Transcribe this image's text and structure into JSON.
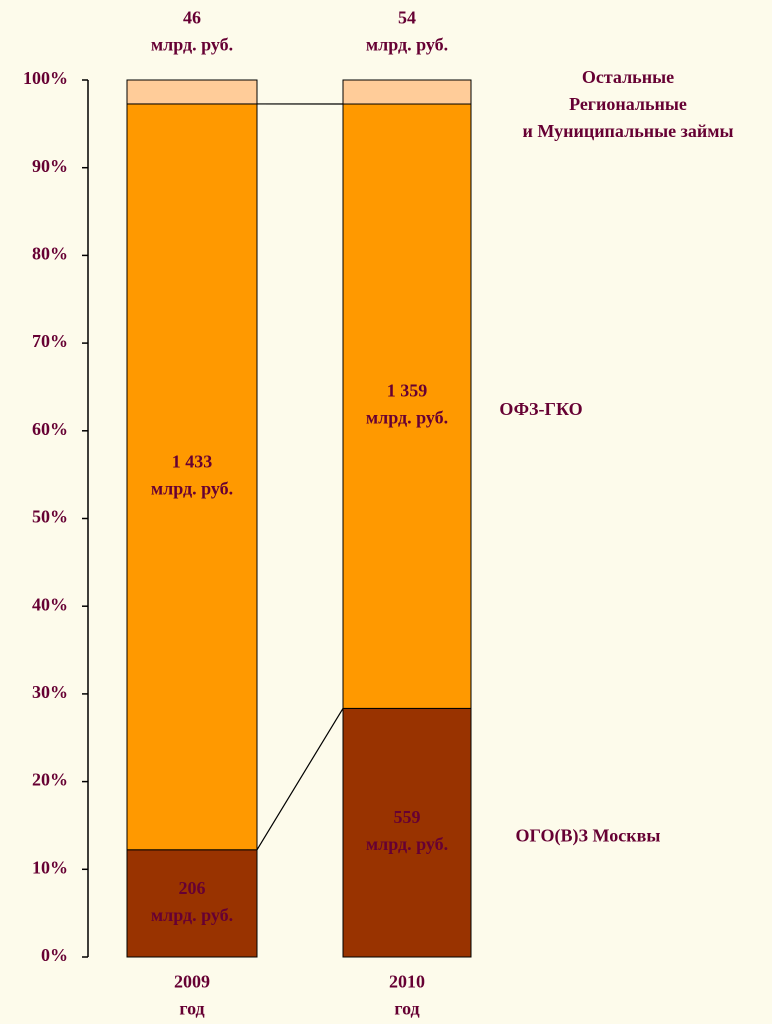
{
  "chart_data": {
    "type": "bar",
    "stacked": "percent",
    "categories": [
      [
        "2009",
        "год"
      ],
      [
        "2010",
        "год"
      ]
    ],
    "series": [
      {
        "name": [
          "ОГО(В)З Москвы"
        ],
        "color": "#993300",
        "label_color": "#ffffff",
        "values": [
          206,
          559
        ],
        "value_labels": [
          [
            "206",
            "млрд. руб."
          ],
          [
            "559",
            "млрд. руб."
          ]
        ]
      },
      {
        "name": [
          "ОФЗ-ГКО"
        ],
        "color": "#ff9900",
        "label_color": "#660033",
        "values": [
          1433,
          1359
        ],
        "value_labels": [
          [
            "1 433",
            "млрд. руб."
          ],
          [
            "1 359",
            "млрд. руб."
          ]
        ]
      },
      {
        "name": [
          "Остальные",
          "Региональные",
          "и Муниципальные займы"
        ],
        "color": "#ffcc99",
        "label_color": "#660033",
        "values": [
          46,
          54
        ],
        "value_labels": [
          [
            "46",
            "млрд. руб."
          ],
          [
            "54",
            "млрд. руб."
          ]
        ]
      }
    ],
    "ylim": [
      0,
      100
    ],
    "yticks": [
      {
        "value": 0,
        "label": "0%"
      },
      {
        "value": 10,
        "label": "10%"
      },
      {
        "value": 20,
        "label": "20%"
      },
      {
        "value": 30,
        "label": "30%"
      },
      {
        "value": 40,
        "label": "40%"
      },
      {
        "value": 50,
        "label": "50%"
      },
      {
        "value": 60,
        "label": "60%"
      },
      {
        "value": 70,
        "label": "70%"
      },
      {
        "value": 80,
        "label": "80%"
      },
      {
        "value": 90,
        "label": "90%"
      },
      {
        "value": 100,
        "label": "100%"
      }
    ]
  }
}
